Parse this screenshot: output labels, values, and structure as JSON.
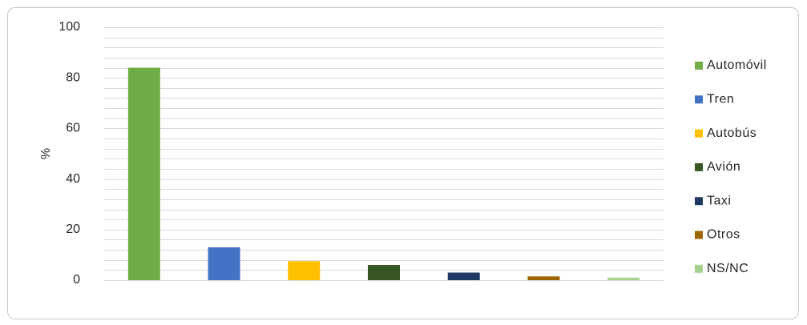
{
  "chart_data": {
    "type": "bar",
    "categories": [
      "Automóvil",
      "Tren",
      "Autobús",
      "Avión",
      "Taxi",
      "Otros",
      "NS/NC"
    ],
    "values": [
      84,
      13,
      7.5,
      6,
      3,
      1.5,
      1
    ],
    "colors": [
      "#70ad47",
      "#4472c4",
      "#ffc000",
      "#375623",
      "#203864",
      "#9c6500",
      "#a9d18e"
    ],
    "title": "",
    "xlabel": "",
    "ylabel": "%",
    "ylim": [
      0,
      100
    ],
    "yticks": [
      0,
      20,
      40,
      60,
      80,
      100
    ],
    "minor_grid_step": 4,
    "grid": true,
    "legend_position": "right"
  }
}
